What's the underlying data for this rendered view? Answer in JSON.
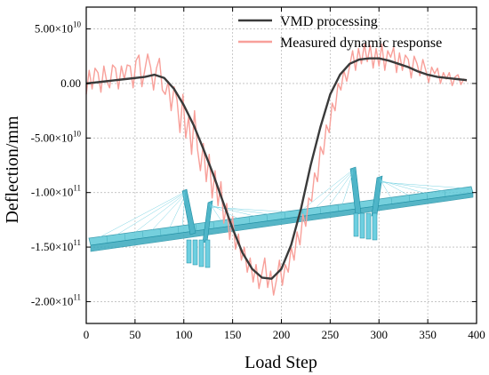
{
  "chart_data": {
    "type": "line",
    "xlabel": "Load Step",
    "ylabel": "Deflection/mm",
    "xlim": [
      0,
      400
    ],
    "ylim": [
      -220000000000.0,
      70000000000.0
    ],
    "xticks": [
      0,
      50,
      100,
      150,
      200,
      250,
      300,
      350,
      400
    ],
    "xtick_labels": [
      "0",
      "50",
      "100",
      "150",
      "200",
      "250",
      "300",
      "350",
      "400"
    ],
    "yticks": [
      50000000000.0,
      0,
      -50000000000.0,
      -100000000000.0,
      -150000000000.0,
      -200000000000.0
    ],
    "ytick_labels": [
      "5.00×10",
      "0.00",
      "-5.00×10",
      "-1.00×10",
      "-1.50×10",
      "-2.00×10"
    ],
    "ytick_exponents": [
      "10",
      "",
      "10",
      "11",
      "11",
      "11"
    ],
    "grid": true,
    "legend_position": "top-right",
    "series": [
      {
        "name": "VMD processing",
        "color": "#3a3a3a",
        "x": [
          0,
          20,
          40,
          60,
          70,
          80,
          90,
          100,
          110,
          120,
          130,
          140,
          150,
          160,
          170,
          180,
          190,
          200,
          210,
          220,
          230,
          240,
          250,
          260,
          270,
          280,
          290,
          300,
          310,
          320,
          330,
          340,
          350,
          360,
          370,
          380,
          390
        ],
        "values": [
          0,
          2000000000.0,
          4000000000.0,
          6000000000.0,
          8000000000.0,
          5000000000.0,
          -5000000000.0,
          -20000000000.0,
          -38000000000.0,
          -60000000000.0,
          -83000000000.0,
          -108000000000.0,
          -133000000000.0,
          -155000000000.0,
          -170000000000.0,
          -178000000000.0,
          -179000000000.0,
          -170000000000.0,
          -148000000000.0,
          -115000000000.0,
          -75000000000.0,
          -40000000000.0,
          -10000000000.0,
          8000000000.0,
          18000000000.0,
          22000000000.0,
          23000000000.0,
          23000000000.0,
          21000000000.0,
          18000000000.0,
          15000000000.0,
          11000000000.0,
          8000000000.0,
          6000000000.0,
          5000000000.0,
          4000000000.0,
          3000000000.0
        ]
      },
      {
        "name": "Measured dynamic response",
        "color": "#f8a09a",
        "x": [
          0,
          3,
          6,
          9,
          12,
          15,
          18,
          21,
          24,
          27,
          30,
          33,
          36,
          39,
          42,
          45,
          48,
          51,
          54,
          57,
          60,
          63,
          66,
          69,
          72,
          75,
          78,
          81,
          84,
          87,
          90,
          93,
          96,
          99,
          102,
          105,
          108,
          111,
          114,
          117,
          120,
          123,
          126,
          129,
          132,
          135,
          138,
          141,
          144,
          147,
          150,
          153,
          156,
          159,
          162,
          165,
          168,
          171,
          174,
          177,
          180,
          183,
          186,
          189,
          192,
          195,
          198,
          201,
          204,
          207,
          210,
          213,
          216,
          219,
          222,
          225,
          228,
          231,
          234,
          237,
          240,
          243,
          246,
          249,
          252,
          255,
          258,
          261,
          264,
          267,
          270,
          273,
          276,
          279,
          282,
          285,
          288,
          291,
          294,
          297,
          300,
          303,
          306,
          309,
          312,
          315,
          318,
          321,
          324,
          327,
          330,
          333,
          336,
          339,
          342,
          345,
          348,
          351,
          354,
          357,
          360,
          363,
          366,
          369,
          372,
          375,
          378,
          381,
          384,
          387,
          390
        ],
        "values": [
          -10000000000.0,
          12000000000.0,
          -5000000000.0,
          14000000000.0,
          10000000000.0,
          -8000000000.0,
          16000000000.0,
          2000000000.0,
          -4000000000.0,
          17000000000.0,
          14000000000.0,
          -5000000000.0,
          16000000000.0,
          4000000000.0,
          17000000000.0,
          16000000000.0,
          -4000000000.0,
          21000000000.0,
          26000000000.0,
          -3000000000.0,
          12000000000.0,
          27000000000.0,
          15000000000.0,
          -6000000000.0,
          14000000000.0,
          23000000000.0,
          -6000000000.0,
          -10000000000.0,
          2000000000.0,
          -25000000000.0,
          -3000000000.0,
          -15000000000.0,
          -45000000000.0,
          -10000000000.0,
          -50000000000.0,
          -30000000000.0,
          -65000000000.0,
          -25000000000.0,
          -60000000000.0,
          -80000000000.0,
          -55000000000.0,
          -90000000000.0,
          -65000000000.0,
          -105000000000.0,
          -80000000000.0,
          -112000000000.0,
          -90000000000.0,
          -128000000000.0,
          -110000000000.0,
          -143000000000.0,
          -122000000000.0,
          -152000000000.0,
          -138000000000.0,
          -162000000000.0,
          -150000000000.0,
          -173000000000.0,
          -160000000000.0,
          -182000000000.0,
          -166000000000.0,
          -188000000000.0,
          -174000000000.0,
          -160000000000.0,
          -187000000000.0,
          -172000000000.0,
          -194000000000.0,
          -180000000000.0,
          -162000000000.0,
          -185000000000.0,
          -166000000000.0,
          -173000000000.0,
          -150000000000.0,
          -162000000000.0,
          -136000000000.0,
          -148000000000.0,
          -120000000000.0,
          -131000000000.0,
          -105000000000.0,
          -108000000000.0,
          -82000000000.0,
          -90000000000.0,
          -58000000000.0,
          -65000000000.0,
          -38000000000.0,
          -45000000000.0,
          -18000000000.0,
          -25000000000.0,
          0.0,
          -6000000000.0,
          12000000000.0,
          2000000000.0,
          16000000000.0,
          30000000000.0,
          12000000000.0,
          32000000000.0,
          18000000000.0,
          36000000000.0,
          20000000000.0,
          35000000000.0,
          14000000000.0,
          32000000000.0,
          16000000000.0,
          36000000000.0,
          12000000000.0,
          30000000000.0,
          24000000000.0,
          33000000000.0,
          10000000000.0,
          28000000000.0,
          12000000000.0,
          26000000000.0,
          22000000000.0,
          5000000000.0,
          25000000000.0,
          18000000000.0,
          7000000000.0,
          22000000000.0,
          12000000000.0,
          1000000000.0,
          15000000000.0,
          9000000000.0,
          14000000000.0,
          0.0,
          10000000000.0,
          4000000000.0,
          10000000000.0,
          -2000000000.0,
          6000000000.0,
          8000000000.0,
          -1000000000.0,
          4000000000.0,
          2000000000.0
        ]
      }
    ]
  }
}
